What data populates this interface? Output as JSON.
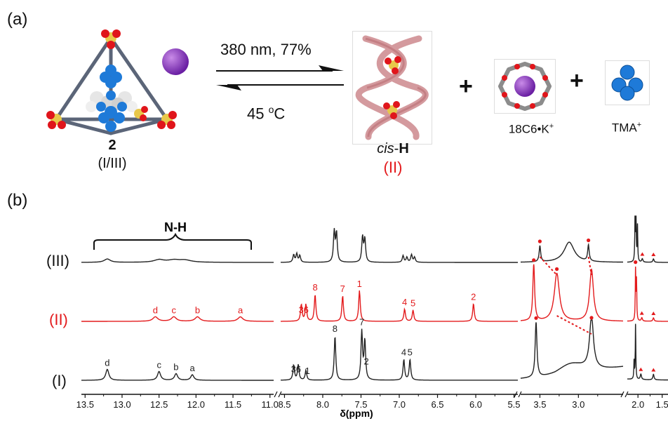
{
  "panel_a": {
    "label": "(a)",
    "cage": {
      "number": "2",
      "states": "(I/III)"
    },
    "forward": {
      "text": "380 nm, 77%"
    },
    "reverse": {
      "text": "45 ",
      "sup": "o",
      "unit": "C"
    },
    "helix": {
      "prefix": "cis",
      "suffix": "H",
      "state": "(II)"
    },
    "plus": "+",
    "crown": {
      "text": "18C6•K",
      "sup": "+"
    },
    "tma": {
      "text": "TMA",
      "sup": "+"
    }
  },
  "panel_b": {
    "label": "(b)",
    "nh_label": "N-H",
    "trace_labels": [
      "(III)",
      "(II)",
      "(I)"
    ],
    "xlabel": "δ(ppm)",
    "colors": {
      "black": "#222222",
      "red": "#e31a1c"
    }
  },
  "chart_data": {
    "type": "line",
    "xlabel": "δ(ppm)",
    "x_reversed": true,
    "x_segments": [
      {
        "range": [
          13.55,
          10.95
        ],
        "ticks": [
          "13.5",
          "13.0",
          "12.5",
          "12.0",
          "11.5",
          "11.0"
        ]
      },
      {
        "range": [
          8.55,
          5.45
        ],
        "ticks": [
          "8.5",
          "8.0",
          "7.5",
          "7.0",
          "6.5",
          "6.0",
          "5.5"
        ]
      },
      {
        "range": [
          3.75,
          2.42
        ],
        "ticks": [
          "3.5",
          "3.0"
        ]
      },
      {
        "range": [
          2.22,
          1.38
        ],
        "ticks": [
          "2.0",
          "1.5"
        ]
      }
    ],
    "series": [
      {
        "name": "(III)",
        "color": "#222222",
        "peaks": [
          {
            "x": 13.2,
            "h": 0.08,
            "w": 0.05
          },
          {
            "x": 12.5,
            "h": 0.06,
            "w": 0.08
          },
          {
            "x": 12.3,
            "h": 0.05,
            "w": 0.1
          },
          {
            "x": 12.15,
            "h": 0.05,
            "w": 0.1
          },
          {
            "x": 8.38,
            "h": 0.18,
            "w": 0.012
          },
          {
            "x": 8.34,
            "h": 0.2,
            "w": 0.012
          },
          {
            "x": 8.3,
            "h": 0.16,
            "w": 0.012
          },
          {
            "x": 7.85,
            "h": 0.72,
            "w": 0.012
          },
          {
            "x": 7.82,
            "h": 0.68,
            "w": 0.012
          },
          {
            "x": 7.48,
            "h": 0.6,
            "w": 0.012
          },
          {
            "x": 7.45,
            "h": 0.55,
            "w": 0.012
          },
          {
            "x": 6.95,
            "h": 0.16,
            "w": 0.012
          },
          {
            "x": 6.9,
            "h": 0.12,
            "w": 0.012
          },
          {
            "x": 6.84,
            "h": 0.18,
            "w": 0.012
          },
          {
            "x": 6.8,
            "h": 0.12,
            "w": 0.012
          },
          {
            "x": 3.5,
            "h": 0.38,
            "w": 0.012
          },
          {
            "x": 3.12,
            "h": 0.48,
            "w": 0.08
          },
          {
            "x": 2.87,
            "h": 0.38,
            "w": 0.012
          },
          {
            "x": 2.06,
            "h": 1.1,
            "w": 0.007
          },
          {
            "x": 2.04,
            "h": 1.0,
            "w": 0.007
          },
          {
            "x": 2.01,
            "h": 0.85,
            "w": 0.007
          },
          {
            "x": 1.91,
            "h": 0.08,
            "w": 0.015
          },
          {
            "x": 1.68,
            "h": 0.08,
            "w": 0.015
          }
        ],
        "labels": []
      },
      {
        "name": "(II)",
        "color": "#e31a1c",
        "peaks": [
          {
            "x": 12.55,
            "h": 0.08,
            "w": 0.04
          },
          {
            "x": 12.3,
            "h": 0.08,
            "w": 0.04
          },
          {
            "x": 11.98,
            "h": 0.08,
            "w": 0.04
          },
          {
            "x": 11.4,
            "h": 0.08,
            "w": 0.04
          },
          {
            "x": 8.28,
            "h": 0.3,
            "w": 0.012
          },
          {
            "x": 8.22,
            "h": 0.3,
            "w": 0.012
          },
          {
            "x": 8.1,
            "h": 0.48,
            "w": 0.012
          },
          {
            "x": 7.74,
            "h": 0.46,
            "w": 0.012
          },
          {
            "x": 7.52,
            "h": 0.55,
            "w": 0.012
          },
          {
            "x": 6.93,
            "h": 0.22,
            "w": 0.012
          },
          {
            "x": 6.82,
            "h": 0.2,
            "w": 0.012
          },
          {
            "x": 6.03,
            "h": 0.32,
            "w": 0.012
          },
          {
            "x": 3.58,
            "h": 1.0,
            "w": 0.014
          },
          {
            "x": 3.28,
            "h": 0.85,
            "w": 0.04
          },
          {
            "x": 2.83,
            "h": 0.92,
            "w": 0.03
          },
          {
            "x": 2.05,
            "h": 0.9,
            "w": 0.007
          },
          {
            "x": 2.03,
            "h": 0.7,
            "w": 0.007
          },
          {
            "x": 1.92,
            "h": 0.06,
            "w": 0.015
          },
          {
            "x": 1.68,
            "h": 0.06,
            "w": 0.015
          }
        ],
        "labels": [
          {
            "x": 12.55,
            "text": "d"
          },
          {
            "x": 12.3,
            "text": "c"
          },
          {
            "x": 11.98,
            "text": "b"
          },
          {
            "x": 11.4,
            "text": "a"
          },
          {
            "x": 8.25,
            "text": "36"
          },
          {
            "x": 8.1,
            "text": "8"
          },
          {
            "x": 7.74,
            "text": "7"
          },
          {
            "x": 7.52,
            "text": "1"
          },
          {
            "x": 6.93,
            "text": "4"
          },
          {
            "x": 6.82,
            "text": "5"
          },
          {
            "x": 6.03,
            "text": "2"
          }
        ]
      },
      {
        "name": "(I)",
        "color": "#222222",
        "peaks": [
          {
            "x": 13.2,
            "h": 0.2,
            "w": 0.025
          },
          {
            "x": 12.5,
            "h": 0.16,
            "w": 0.025
          },
          {
            "x": 12.27,
            "h": 0.12,
            "w": 0.025
          },
          {
            "x": 12.05,
            "h": 0.1,
            "w": 0.025
          },
          {
            "x": 8.38,
            "h": 0.28,
            "w": 0.012
          },
          {
            "x": 8.32,
            "h": 0.28,
            "w": 0.012
          },
          {
            "x": 8.22,
            "h": 0.18,
            "w": 0.012
          },
          {
            "x": 7.84,
            "h": 0.82,
            "w": 0.012
          },
          {
            "x": 7.49,
            "h": 0.88,
            "w": 0.012
          },
          {
            "x": 7.45,
            "h": 0.72,
            "w": 0.012
          },
          {
            "x": 6.94,
            "h": 0.38,
            "w": 0.012
          },
          {
            "x": 6.86,
            "h": 0.38,
            "w": 0.012
          },
          {
            "x": 3.55,
            "h": 1.0,
            "w": 0.014
          },
          {
            "x": 2.83,
            "h": 0.95,
            "w": 0.03
          },
          {
            "x": 3.1,
            "h": 0.25,
            "w": 0.25
          },
          {
            "x": 2.05,
            "h": 1.0,
            "w": 0.007
          },
          {
            "x": 2.08,
            "h": 0.32,
            "w": 0.007
          },
          {
            "x": 1.94,
            "h": 0.1,
            "w": 0.015
          },
          {
            "x": 1.68,
            "h": 0.1,
            "w": 0.015
          }
        ],
        "labels": [
          {
            "x": 13.2,
            "text": "d"
          },
          {
            "x": 12.5,
            "text": "c"
          },
          {
            "x": 12.27,
            "text": "b"
          },
          {
            "x": 12.05,
            "text": "a"
          },
          {
            "x": 8.35,
            "text": "36"
          },
          {
            "x": 8.2,
            "text": "1"
          },
          {
            "x": 7.84,
            "text": "8"
          },
          {
            "x": 7.49,
            "text": "7"
          },
          {
            "x": 7.43,
            "text": "2"
          },
          {
            "x": 6.94,
            "text": "4"
          },
          {
            "x": 6.86,
            "text": "5"
          }
        ]
      }
    ],
    "markers": [
      {
        "series": "(III)",
        "x": 3.5,
        "shape": "dot"
      },
      {
        "series": "(III)",
        "x": 2.87,
        "shape": "dot"
      },
      {
        "series": "(III)",
        "x": 1.91,
        "shape": "triangle"
      },
      {
        "series": "(III)",
        "x": 1.68,
        "shape": "triangle"
      },
      {
        "series": "(II)",
        "x": 3.58,
        "shape": "dot"
      },
      {
        "series": "(II)",
        "x": 3.28,
        "shape": "dot"
      },
      {
        "series": "(II)",
        "x": 2.05,
        "shape": "dot"
      },
      {
        "series": "(II)",
        "x": 1.92,
        "shape": "triangle"
      },
      {
        "series": "(II)",
        "x": 1.68,
        "shape": "triangle"
      },
      {
        "series": "(I)",
        "x": 3.55,
        "shape": "dot"
      },
      {
        "series": "(I)",
        "x": 2.83,
        "shape": "dot"
      },
      {
        "series": "(I)",
        "x": 1.94,
        "shape": "triangle"
      },
      {
        "series": "(I)",
        "x": 1.68,
        "shape": "triangle"
      }
    ]
  }
}
